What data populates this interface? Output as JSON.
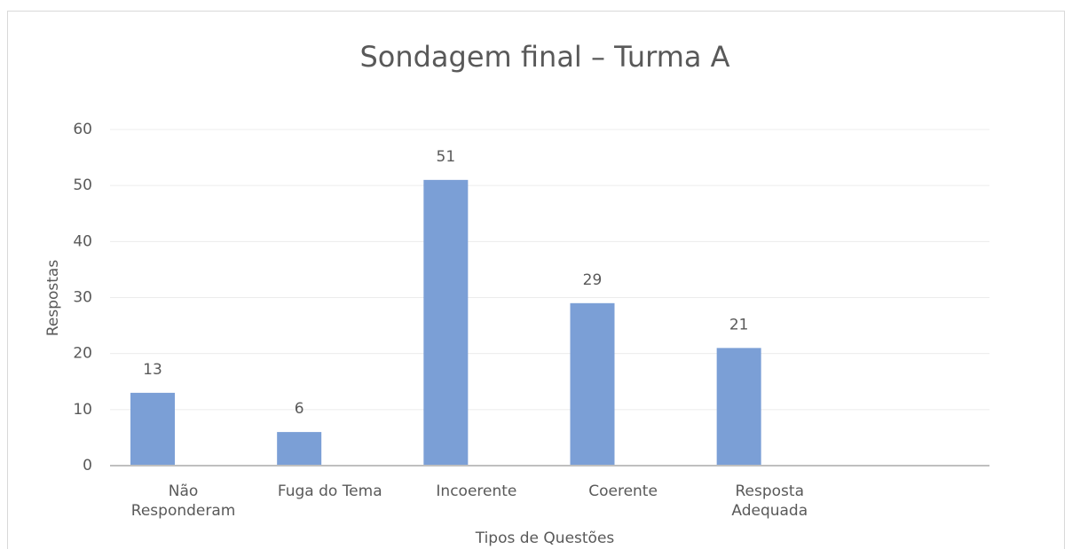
{
  "chart_data": {
    "type": "bar",
    "title": "Sondagem final – Turma A",
    "x_label": "Tipos de Questões",
    "y_label": "Respostas",
    "categories": [
      "Não Responderam",
      "Fuga do Tema",
      "Incoerente",
      "Coerente",
      "Resposta Adequada",
      null
    ],
    "values": [
      13,
      6,
      51,
      29,
      21,
      null
    ],
    "color": "#7b9fd6",
    "ylim": [
      0,
      60
    ],
    "yticks": [
      0,
      10,
      20,
      30,
      40,
      50,
      60
    ],
    "grid": true
  }
}
